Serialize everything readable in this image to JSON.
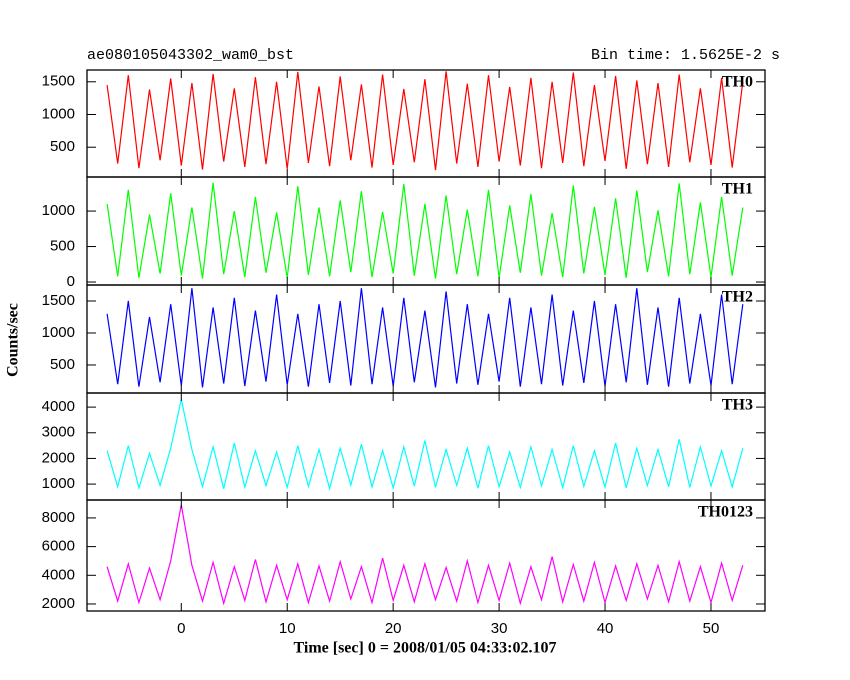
{
  "chart_data": [
    {
      "type": "line",
      "title": "ae080105043302_wam0_bst",
      "subtitle": "Bin time: 1.5625E-2 s",
      "x": [
        -7,
        -6,
        -5,
        -4,
        -3,
        -2,
        -1,
        0,
        1,
        2,
        3,
        4,
        5,
        6,
        7,
        8,
        9,
        10,
        11,
        12,
        13,
        14,
        15,
        16,
        17,
        18,
        19,
        20,
        21,
        22,
        23,
        24,
        25,
        26,
        27,
        28,
        29,
        30,
        31,
        32,
        33,
        34,
        35,
        36,
        37,
        38,
        39,
        40,
        41,
        42,
        43,
        44,
        45,
        46,
        47,
        48,
        49,
        50,
        51,
        52,
        53
      ],
      "xlim": [
        -8.9,
        55.1
      ],
      "xticks": [
        0,
        10,
        20,
        30,
        40,
        50
      ],
      "ylim": [
        45,
        1680
      ],
      "yticks": [
        500,
        1000,
        1500
      ],
      "series": [
        {
          "name": "TH0",
          "color": "#ff0000",
          "values": [
            1450,
            250,
            1600,
            180,
            1380,
            300,
            1550,
            220,
            1480,
            160,
            1620,
            280,
            1400,
            200,
            1570,
            240,
            1500,
            170,
            1650,
            260,
            1430,
            210,
            1580,
            300,
            1460,
            190,
            1610,
            230,
            1390,
            270,
            1540,
            150,
            1660,
            250,
            1470,
            200,
            1600,
            280,
            1420,
            220,
            1560,
            180,
            1500,
            260,
            1640,
            210,
            1450,
            290,
            1590,
            170,
            1520,
            240,
            1480,
            200,
            1610,
            270,
            1400,
            230,
            1560,
            190,
            1500
          ]
        }
      ]
    },
    {
      "type": "line",
      "x": [
        -7,
        -6,
        -5,
        -4,
        -3,
        -2,
        -1,
        0,
        1,
        2,
        3,
        4,
        5,
        6,
        7,
        8,
        9,
        10,
        11,
        12,
        13,
        14,
        15,
        16,
        17,
        18,
        19,
        20,
        21,
        22,
        23,
        24,
        25,
        26,
        27,
        28,
        29,
        30,
        31,
        32,
        33,
        34,
        35,
        36,
        37,
        38,
        39,
        40,
        41,
        42,
        43,
        44,
        45,
        46,
        47,
        48,
        49,
        50,
        51,
        52,
        53
      ],
      "xlim": [
        -8.9,
        55.1
      ],
      "xticks": [
        0,
        10,
        20,
        30,
        40,
        50
      ],
      "ylim": [
        -42,
        1480
      ],
      "yticks": [
        0,
        500,
        1000
      ],
      "series": [
        {
          "name": "TH1",
          "color": "#00ff00",
          "values": [
            1100,
            80,
            1300,
            60,
            950,
            120,
            1250,
            90,
            1050,
            50,
            1400,
            110,
            1000,
            70,
            1200,
            130,
            980,
            60,
            1350,
            100,
            1050,
            80,
            1150,
            140,
            1280,
            70,
            990,
            120,
            1380,
            90,
            1100,
            50,
            1220,
            110,
            1020,
            80,
            1300,
            60,
            1080,
            130,
            1240,
            90,
            970,
            70,
            1360,
            120,
            1060,
            100,
            1180,
            60,
            1290,
            140,
            1010,
            80,
            1390,
            110,
            1120,
            70,
            1200,
            90,
            1050
          ]
        }
      ]
    },
    {
      "type": "line",
      "ylabel": "Counts/sec",
      "x": [
        -7,
        -6,
        -5,
        -4,
        -3,
        -2,
        -1,
        0,
        1,
        2,
        3,
        4,
        5,
        6,
        7,
        8,
        9,
        10,
        11,
        12,
        13,
        14,
        15,
        16,
        17,
        18,
        19,
        20,
        21,
        22,
        23,
        24,
        25,
        26,
        27,
        28,
        29,
        30,
        31,
        32,
        33,
        34,
        35,
        36,
        37,
        38,
        39,
        40,
        41,
        42,
        43,
        44,
        45,
        46,
        47,
        48,
        49,
        50,
        51,
        52,
        53
      ],
      "xlim": [
        -8.9,
        55.1
      ],
      "xticks": [
        0,
        10,
        20,
        30,
        40,
        50
      ],
      "ylim": [
        62,
        1750
      ],
      "yticks": [
        500,
        1000,
        1500
      ],
      "series": [
        {
          "name": "TH2",
          "color": "#0000ff",
          "values": [
            1300,
            200,
            1500,
            160,
            1250,
            230,
            1450,
            180,
            1700,
            150,
            1400,
            210,
            1550,
            170,
            1350,
            240,
            1600,
            190,
            1300,
            160,
            1450,
            220,
            1500,
            180,
            1700,
            200,
            1400,
            170,
            1550,
            230,
            1350,
            150,
            1650,
            210,
            1450,
            190,
            1300,
            240,
            1550,
            160,
            1400,
            200,
            1600,
            180,
            1350,
            220,
            1500,
            170,
            1450,
            230,
            1700,
            190,
            1400,
            160,
            1550,
            210,
            1300,
            180,
            1600,
            200,
            1450
          ]
        }
      ]
    },
    {
      "type": "line",
      "x": [
        -7,
        -6,
        -5,
        -4,
        -3,
        -2,
        -1,
        0,
        1,
        2,
        3,
        4,
        5,
        6,
        7,
        8,
        9,
        10,
        11,
        12,
        13,
        14,
        15,
        16,
        17,
        18,
        19,
        20,
        21,
        22,
        23,
        24,
        25,
        26,
        27,
        28,
        29,
        30,
        31,
        32,
        33,
        34,
        35,
        36,
        37,
        38,
        39,
        40,
        41,
        42,
        43,
        44,
        45,
        46,
        47,
        48,
        49,
        50,
        51,
        52,
        53
      ],
      "xlim": [
        -8.9,
        55.1
      ],
      "xticks": [
        0,
        10,
        20,
        30,
        40,
        50
      ],
      "ylim": [
        380,
        4550
      ],
      "yticks": [
        1000,
        2000,
        3000,
        4000
      ],
      "series": [
        {
          "name": "TH3",
          "color": "#00ffff",
          "values": [
            2300,
            900,
            2500,
            850,
            2200,
            950,
            2400,
            4300,
            2350,
            900,
            2450,
            820,
            2600,
            880,
            2300,
            940,
            2250,
            870,
            2500,
            910,
            2350,
            830,
            2400,
            960,
            2550,
            890,
            2300,
            850,
            2450,
            920,
            2700,
            880,
            2350,
            950,
            2400,
            840,
            2500,
            900,
            2250,
            870,
            2450,
            930,
            2350,
            860,
            2500,
            910,
            2300,
            880,
            2600,
            850,
            2400,
            940,
            2350,
            900,
            2750,
            870,
            2450,
            920,
            2300,
            890,
            2400
          ]
        }
      ]
    },
    {
      "type": "line",
      "xlabel": "Time [sec] 0 = 2008/01/05 04:33:02.107",
      "x": [
        -7,
        -6,
        -5,
        -4,
        -3,
        -2,
        -1,
        0,
        1,
        2,
        3,
        4,
        5,
        6,
        7,
        8,
        9,
        10,
        11,
        12,
        13,
        14,
        15,
        16,
        17,
        18,
        19,
        20,
        21,
        22,
        23,
        24,
        25,
        26,
        27,
        28,
        29,
        30,
        31,
        32,
        33,
        34,
        35,
        36,
        37,
        38,
        39,
        40,
        41,
        42,
        43,
        44,
        45,
        46,
        47,
        48,
        49,
        50,
        51,
        52,
        53
      ],
      "xlim": [
        -8.9,
        55.1
      ],
      "xticks": [
        0,
        10,
        20,
        30,
        40,
        50
      ],
      "ylim": [
        1510,
        9250
      ],
      "yticks": [
        2000,
        4000,
        6000,
        8000
      ],
      "series": [
        {
          "name": "TH0123",
          "color": "#ff00ff",
          "values": [
            4600,
            2200,
            4800,
            2100,
            4500,
            2300,
            5000,
            8900,
            4700,
            2200,
            4900,
            2050,
            4600,
            2250,
            5100,
            2150,
            4700,
            2300,
            4800,
            2100,
            4650,
            2200,
            4950,
            2350,
            4600,
            2100,
            5200,
            2250,
            4700,
            2150,
            4800,
            2300,
            4550,
            2200,
            5000,
            2100,
            4700,
            2250,
            4850,
            2050,
            4600,
            2300,
            5300,
            2150,
            4750,
            2200,
            4900,
            2100,
            4650,
            2250,
            4800,
            2350,
            4700,
            2150,
            4950,
            2200,
            4600,
            2100,
            4850,
            2250,
            4700
          ]
        }
      ]
    }
  ]
}
